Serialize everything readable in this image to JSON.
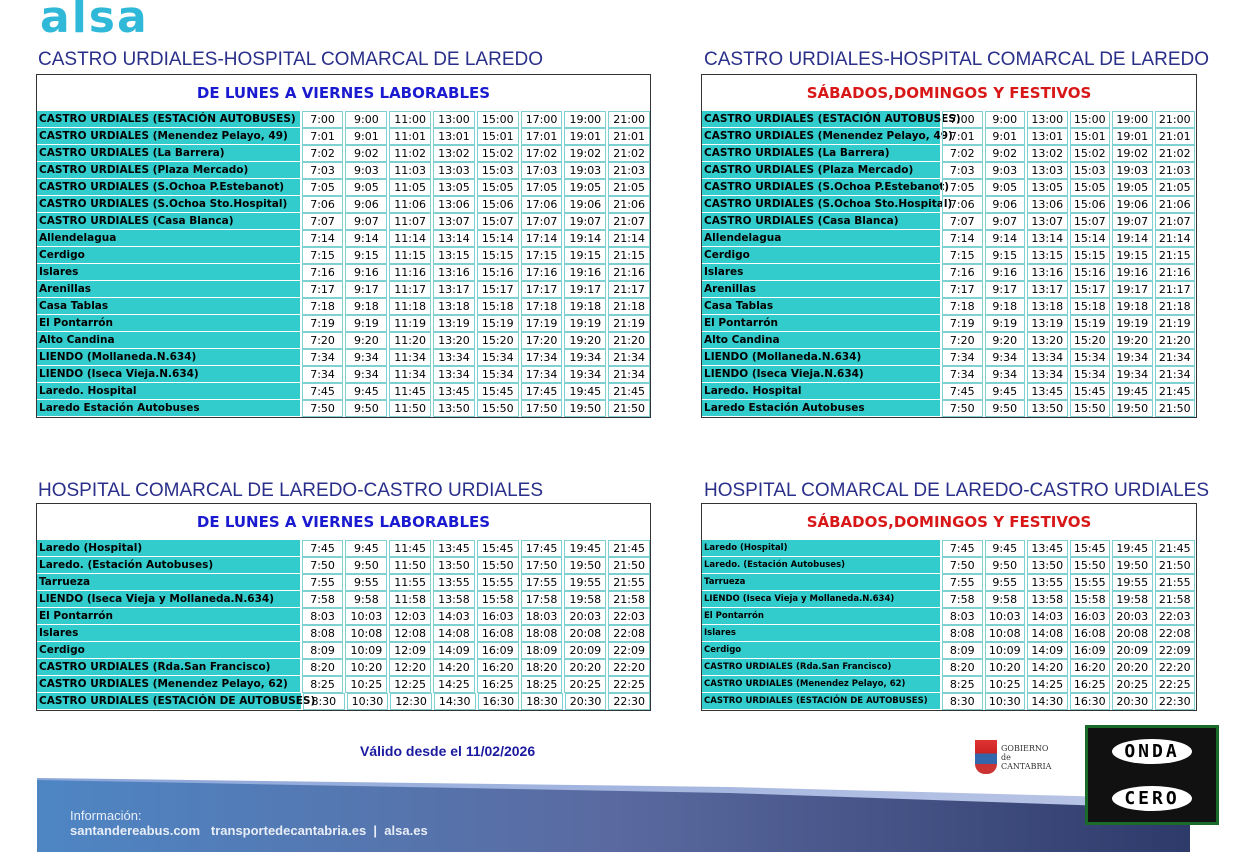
{
  "brand": "alsa",
  "tables": [
    {
      "title": "CASTRO URDIALES-HOSPITAL COMARCAL DE LAREDO",
      "header": "DE LUNES A VIERNES LABORABLES",
      "header_color": "#1a1ad0",
      "rows": [
        [
          "CASTRO URDIALES (ESTACIÓN AUTOBUSES)",
          [
            "7:00",
            "9:00",
            "11:00",
            "13:00",
            "15:00",
            "17:00",
            "19:00",
            "21:00"
          ]
        ],
        [
          "CASTRO URDIALES (Menendez Pelayo, 49)",
          [
            "7:01",
            "9:01",
            "11:01",
            "13:01",
            "15:01",
            "17:01",
            "19:01",
            "21:01"
          ]
        ],
        [
          "CASTRO URDIALES (La Barrera)",
          [
            "7:02",
            "9:02",
            "11:02",
            "13:02",
            "15:02",
            "17:02",
            "19:02",
            "21:02"
          ]
        ],
        [
          "CASTRO URDIALES (Plaza Mercado)",
          [
            "7:03",
            "9:03",
            "11:03",
            "13:03",
            "15:03",
            "17:03",
            "19:03",
            "21:03"
          ]
        ],
        [
          "CASTRO URDIALES (S.Ochoa P.Estebanot)",
          [
            "7:05",
            "9:05",
            "11:05",
            "13:05",
            "15:05",
            "17:05",
            "19:05",
            "21:05"
          ]
        ],
        [
          "CASTRO URDIALES (S.Ochoa Sto.Hospital)",
          [
            "7:06",
            "9:06",
            "11:06",
            "13:06",
            "15:06",
            "17:06",
            "19:06",
            "21:06"
          ]
        ],
        [
          "CASTRO URDIALES (Casa Blanca)",
          [
            "7:07",
            "9:07",
            "11:07",
            "13:07",
            "15:07",
            "17:07",
            "19:07",
            "21:07"
          ]
        ],
        [
          "Allendelagua",
          [
            "7:14",
            "9:14",
            "11:14",
            "13:14",
            "15:14",
            "17:14",
            "19:14",
            "21:14"
          ]
        ],
        [
          "Cerdigo",
          [
            "7:15",
            "9:15",
            "11:15",
            "13:15",
            "15:15",
            "17:15",
            "19:15",
            "21:15"
          ]
        ],
        [
          "Islares",
          [
            "7:16",
            "9:16",
            "11:16",
            "13:16",
            "15:16",
            "17:16",
            "19:16",
            "21:16"
          ]
        ],
        [
          "Arenillas",
          [
            "7:17",
            "9:17",
            "11:17",
            "13:17",
            "15:17",
            "17:17",
            "19:17",
            "21:17"
          ]
        ],
        [
          "Casa Tablas",
          [
            "7:18",
            "9:18",
            "11:18",
            "13:18",
            "15:18",
            "17:18",
            "19:18",
            "21:18"
          ]
        ],
        [
          "El Pontarrón",
          [
            "7:19",
            "9:19",
            "11:19",
            "13:19",
            "15:19",
            "17:19",
            "19:19",
            "21:19"
          ]
        ],
        [
          "Alto Candina",
          [
            "7:20",
            "9:20",
            "11:20",
            "13:20",
            "15:20",
            "17:20",
            "19:20",
            "21:20"
          ]
        ],
        [
          "LIENDO (Mollaneda.N.634)",
          [
            "7:34",
            "9:34",
            "11:34",
            "13:34",
            "15:34",
            "17:34",
            "19:34",
            "21:34"
          ]
        ],
        [
          "LIENDO (Iseca Vieja.N.634)",
          [
            "7:34",
            "9:34",
            "11:34",
            "13:34",
            "15:34",
            "17:34",
            "19:34",
            "21:34"
          ]
        ],
        [
          "Laredo. Hospital",
          [
            "7:45",
            "9:45",
            "11:45",
            "13:45",
            "15:45",
            "17:45",
            "19:45",
            "21:45"
          ]
        ],
        [
          "Laredo Estación Autobuses",
          [
            "7:50",
            "9:50",
            "11:50",
            "13:50",
            "15:50",
            "17:50",
            "19:50",
            "21:50"
          ]
        ]
      ]
    },
    {
      "title": "CASTRO URDIALES-HOSPITAL COMARCAL DE LAREDO",
      "header": "SÁBADOS,DOMINGOS Y FESTIVOS",
      "header_color": "#d81818",
      "rows": [
        [
          "CASTRO URDIALES (ESTACIÓN AUTOBUSES)",
          [
            "7:00",
            "9:00",
            "13:00",
            "15:00",
            "19:00",
            "21:00"
          ]
        ],
        [
          "CASTRO URDIALES (Menendez Pelayo, 49)",
          [
            "7:01",
            "9:01",
            "13:01",
            "15:01",
            "19:01",
            "21:01"
          ]
        ],
        [
          "CASTRO URDIALES (La Barrera)",
          [
            "7:02",
            "9:02",
            "13:02",
            "15:02",
            "19:02",
            "21:02"
          ]
        ],
        [
          "CASTRO URDIALES (Plaza Mercado)",
          [
            "7:03",
            "9:03",
            "13:03",
            "15:03",
            "19:03",
            "21:03"
          ]
        ],
        [
          "CASTRO URDIALES (S.Ochoa P.Estebanot)",
          [
            "7:05",
            "9:05",
            "13:05",
            "15:05",
            "19:05",
            "21:05"
          ]
        ],
        [
          "CASTRO URDIALES (S.Ochoa Sto.Hospital)",
          [
            "7:06",
            "9:06",
            "13:06",
            "15:06",
            "19:06",
            "21:06"
          ]
        ],
        [
          "CASTRO URDIALES (Casa Blanca)",
          [
            "7:07",
            "9:07",
            "13:07",
            "15:07",
            "19:07",
            "21:07"
          ]
        ],
        [
          "Allendelagua",
          [
            "7:14",
            "9:14",
            "13:14",
            "15:14",
            "19:14",
            "21:14"
          ]
        ],
        [
          "Cerdigo",
          [
            "7:15",
            "9:15",
            "13:15",
            "15:15",
            "19:15",
            "21:15"
          ]
        ],
        [
          "Islares",
          [
            "7:16",
            "9:16",
            "13:16",
            "15:16",
            "19:16",
            "21:16"
          ]
        ],
        [
          "Arenillas",
          [
            "7:17",
            "9:17",
            "13:17",
            "15:17",
            "19:17",
            "21:17"
          ]
        ],
        [
          "Casa Tablas",
          [
            "7:18",
            "9:18",
            "13:18",
            "15:18",
            "19:18",
            "21:18"
          ]
        ],
        [
          "El Pontarrón",
          [
            "7:19",
            "9:19",
            "13:19",
            "15:19",
            "19:19",
            "21:19"
          ]
        ],
        [
          "Alto Candina",
          [
            "7:20",
            "9:20",
            "13:20",
            "15:20",
            "19:20",
            "21:20"
          ]
        ],
        [
          "LIENDO (Mollaneda.N.634)",
          [
            "7:34",
            "9:34",
            "13:34",
            "15:34",
            "19:34",
            "21:34"
          ]
        ],
        [
          "LIENDO (Iseca Vieja.N.634)",
          [
            "7:34",
            "9:34",
            "13:34",
            "15:34",
            "19:34",
            "21:34"
          ]
        ],
        [
          "Laredo. Hospital",
          [
            "7:45",
            "9:45",
            "13:45",
            "15:45",
            "19:45",
            "21:45"
          ]
        ],
        [
          "Laredo Estación Autobuses",
          [
            "7:50",
            "9:50",
            "13:50",
            "15:50",
            "19:50",
            "21:50"
          ]
        ]
      ]
    },
    {
      "title": "HOSPITAL COMARCAL DE  LAREDO-CASTRO URDIALES",
      "header": "DE LUNES A VIERNES LABORABLES",
      "header_color": "#1a1ad0",
      "rows": [
        [
          "Laredo (Hospital)",
          [
            "7:45",
            "9:45",
            "11:45",
            "13:45",
            "15:45",
            "17:45",
            "19:45",
            "21:45"
          ]
        ],
        [
          "Laredo. (Estación Autobuses)",
          [
            "7:50",
            "9:50",
            "11:50",
            "13:50",
            "15:50",
            "17:50",
            "19:50",
            "21:50"
          ]
        ],
        [
          "Tarrueza",
          [
            "7:55",
            "9:55",
            "11:55",
            "13:55",
            "15:55",
            "17:55",
            "19:55",
            "21:55"
          ]
        ],
        [
          "LIENDO (Iseca Vieja y Mollaneda.N.634)",
          [
            "7:58",
            "9:58",
            "11:58",
            "13:58",
            "15:58",
            "17:58",
            "19:58",
            "21:58"
          ]
        ],
        [
          "El Pontarrón",
          [
            "8:03",
            "10:03",
            "12:03",
            "14:03",
            "16:03",
            "18:03",
            "20:03",
            "22:03"
          ]
        ],
        [
          "Islares",
          [
            "8:08",
            "10:08",
            "12:08",
            "14:08",
            "16:08",
            "18:08",
            "20:08",
            "22:08"
          ]
        ],
        [
          "Cerdigo",
          [
            "8:09",
            "10:09",
            "12:09",
            "14:09",
            "16:09",
            "18:09",
            "20:09",
            "22:09"
          ]
        ],
        [
          "CASTRO URDIALES (Rda.San Francisco)",
          [
            "8:20",
            "10:20",
            "12:20",
            "14:20",
            "16:20",
            "18:20",
            "20:20",
            "22:20"
          ]
        ],
        [
          "CASTRO URDIALES (Menendez Pelayo, 62)",
          [
            "8:25",
            "10:25",
            "12:25",
            "14:25",
            "16:25",
            "18:25",
            "20:25",
            "22:25"
          ]
        ],
        [
          "CASTRO URDIALES  (ESTACIÓN DE AUTOBUSES)",
          [
            "8:30",
            "10:30",
            "12:30",
            "14:30",
            "16:30",
            "18:30",
            "20:30",
            "22:30"
          ]
        ]
      ]
    },
    {
      "title": "HOSPITAL COMARCAL DE  LAREDO-CASTRO URDIALES",
      "header": "SÁBADOS,DOMINGOS Y FESTIVOS",
      "header_color": "#d81818",
      "rows": [
        [
          "Laredo (Hospital)",
          [
            "7:45",
            "9:45",
            "13:45",
            "15:45",
            "19:45",
            "21:45"
          ]
        ],
        [
          "Laredo. (Estación Autobuses)",
          [
            "7:50",
            "9:50",
            "13:50",
            "15:50",
            "19:50",
            "21:50"
          ]
        ],
        [
          "Tarrueza",
          [
            "7:55",
            "9:55",
            "13:55",
            "15:55",
            "19:55",
            "21:55"
          ]
        ],
        [
          "LIENDO (Iseca Vieja y Mollaneda.N.634)",
          [
            "7:58",
            "9:58",
            "13:58",
            "15:58",
            "19:58",
            "21:58"
          ]
        ],
        [
          "El Pontarrón",
          [
            "8:03",
            "10:03",
            "14:03",
            "16:03",
            "20:03",
            "22:03"
          ]
        ],
        [
          "Islares",
          [
            "8:08",
            "10:08",
            "14:08",
            "16:08",
            "20:08",
            "22:08"
          ]
        ],
        [
          "Cerdigo",
          [
            "8:09",
            "10:09",
            "14:09",
            "16:09",
            "20:09",
            "22:09"
          ]
        ],
        [
          "CASTRO URDIALES (Rda.San Francisco)",
          [
            "8:20",
            "10:20",
            "14:20",
            "16:20",
            "20:20",
            "22:20"
          ]
        ],
        [
          "CASTRO URDIALES (Menendez Pelayo, 62)",
          [
            "8:25",
            "10:25",
            "14:25",
            "16:25",
            "20:25",
            "22:25"
          ]
        ],
        [
          "CASTRO URDIALES  (ESTACIÓN DE AUTOBUSES)",
          [
            "8:30",
            "10:30",
            "14:30",
            "16:30",
            "20:30",
            "22:30"
          ]
        ]
      ]
    }
  ],
  "valid_from": "Válido desde el 11/02/2026",
  "footer": {
    "info_label": "Información:",
    "links": "santandereabus.com   transportedecantabria.es  |  alsa.es"
  },
  "gobierno": {
    "line1": "GOBIERNO",
    "line2": "de",
    "line3": "CANTABRIA"
  },
  "onda": {
    "top": "ONDA",
    "bottom": "CERO"
  }
}
